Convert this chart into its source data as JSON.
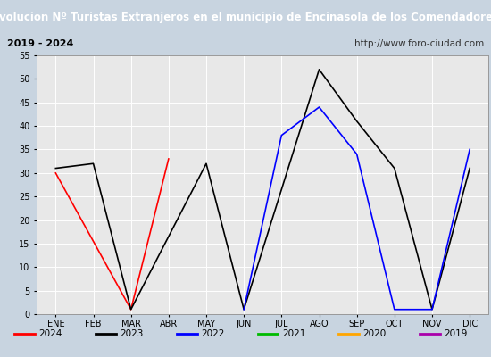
{
  "title": "Evolucion Nº Turistas Extranjeros en el municipio de Encinasola de los Comendadores",
  "subtitle_left": "2019 - 2024",
  "subtitle_right": "http://www.foro-ciudad.com",
  "months": [
    "ENE",
    "FEB",
    "MAR",
    "ABR",
    "MAY",
    "JUN",
    "JUL",
    "AGO",
    "SEP",
    "OCT",
    "NOV",
    "DIC"
  ],
  "month_indices": [
    1,
    2,
    3,
    4,
    5,
    6,
    7,
    8,
    9,
    10,
    11,
    12
  ],
  "series": {
    "2024": {
      "color": "#ff0000",
      "data": [
        30,
        null,
        1,
        33,
        null,
        null,
        null,
        null,
        null,
        null,
        null,
        null
      ]
    },
    "2023": {
      "color": "#000000",
      "data": [
        31,
        32,
        1,
        null,
        32,
        1,
        null,
        52,
        41,
        31,
        1,
        31
      ]
    },
    "2022": {
      "color": "#0000ff",
      "data": [
        null,
        null,
        null,
        null,
        null,
        1,
        38,
        44,
        34,
        1,
        1,
        35
      ]
    },
    "2021": {
      "color": "#00bb00",
      "data": [
        null,
        null,
        null,
        null,
        null,
        null,
        null,
        null,
        null,
        null,
        null,
        null
      ]
    },
    "2020": {
      "color": "#ffa500",
      "data": [
        null,
        null,
        null,
        null,
        null,
        null,
        null,
        null,
        null,
        null,
        null,
        null
      ]
    },
    "2019": {
      "color": "#aa00aa",
      "data": [
        null,
        null,
        null,
        null,
        null,
        null,
        null,
        null,
        null,
        null,
        null,
        null
      ]
    }
  },
  "ylim": [
    0,
    55
  ],
  "yticks": [
    0,
    5,
    10,
    15,
    20,
    25,
    30,
    35,
    40,
    45,
    50,
    55
  ],
  "plot_bg_color": "#e8e8e8",
  "title_bg_color": "#5b87b8",
  "title_text_color": "#ffffff",
  "subtitle_bg_color": "#d9e4f0",
  "subtitle_border_color": "#8bafd4",
  "outer_bg_color": "#c8d4e0",
  "legend_order": [
    "2024",
    "2023",
    "2022",
    "2021",
    "2020",
    "2019"
  ],
  "grid_color": "#ffffff",
  "spine_color": "#999999"
}
